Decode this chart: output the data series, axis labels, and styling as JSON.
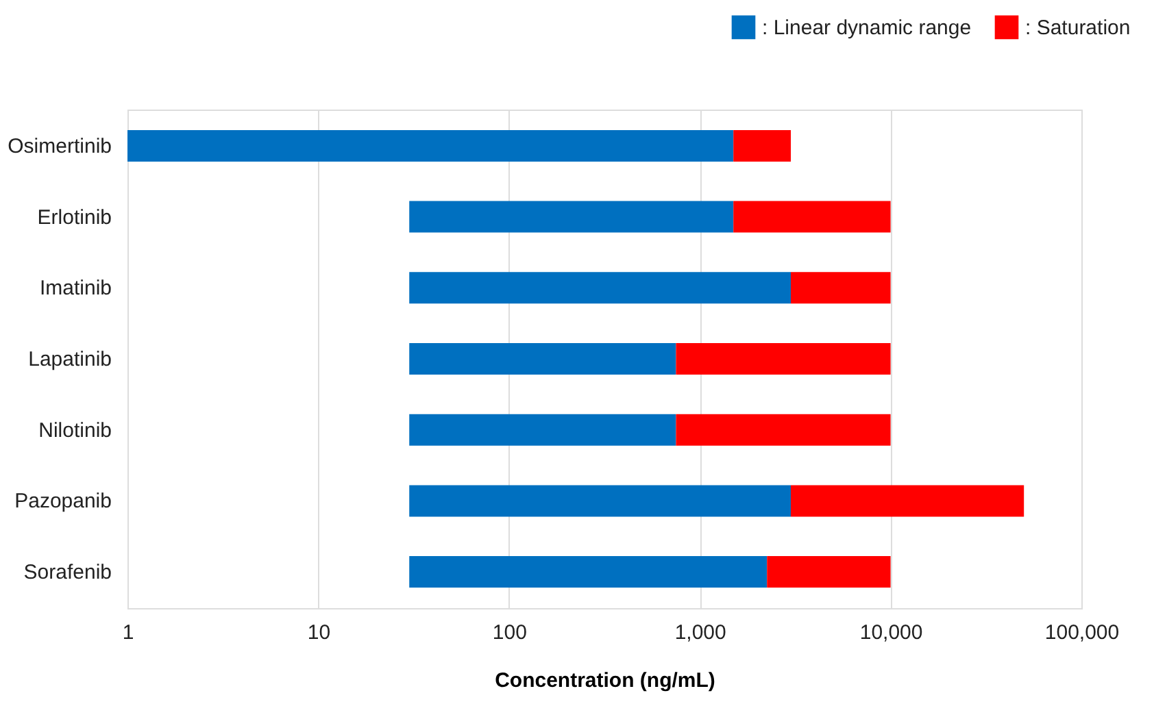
{
  "chart_data": {
    "type": "bar",
    "orientation": "horizontal",
    "log": "x",
    "xlabel": "Concentration (ng/mL)",
    "categories": [
      "Osimertinib",
      "Erlotinib",
      "Imatinib",
      "Lapatinib",
      "Nilotinib",
      "Pazopanib",
      "Sorafenib"
    ],
    "series": [
      {
        "name": ": Linear dynamic range",
        "color": "#0070c0",
        "base": [
          1,
          30,
          30,
          30,
          30,
          30,
          30
        ],
        "values": [
          1499,
          1470,
          2970,
          720,
          720,
          2970,
          2220
        ]
      },
      {
        "name": ": Saturation",
        "color": "#ff0000",
        "base": [
          1500,
          1500,
          3000,
          750,
          750,
          3000,
          2250
        ],
        "values": [
          1500,
          8500,
          7000,
          9250,
          9250,
          47000,
          7750
        ]
      }
    ],
    "xlim": [
      1,
      100000
    ],
    "xticks": [
      1,
      10,
      100,
      {
        "value": 1000,
        "label": "1,000"
      },
      {
        "value": 10000,
        "label": "10,000"
      },
      {
        "value": 100000,
        "label": "100,000"
      }
    ],
    "grid": "x",
    "legend": "top right"
  }
}
